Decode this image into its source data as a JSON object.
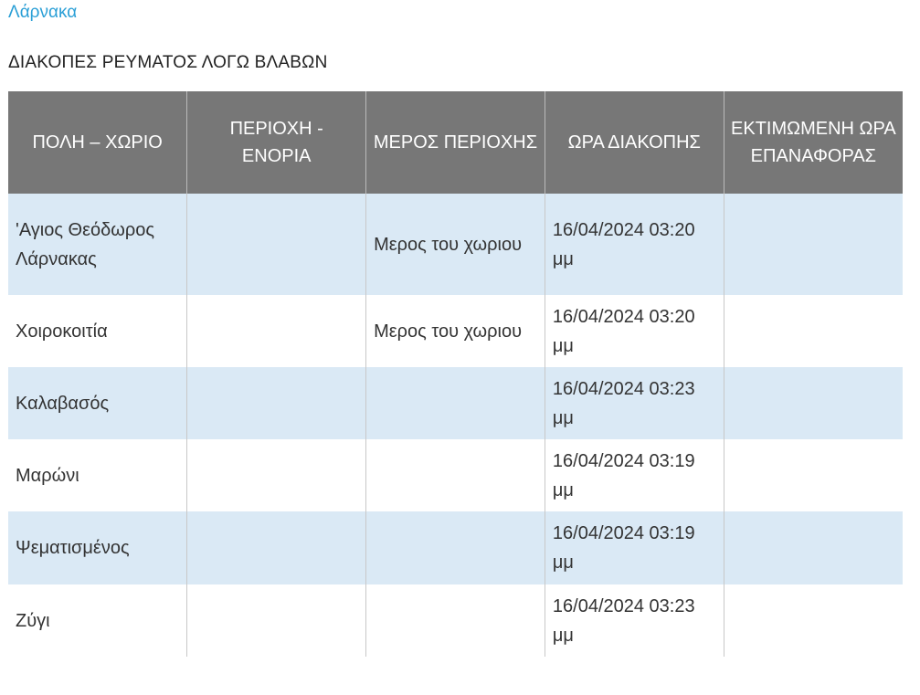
{
  "city": "Λάρνακα",
  "title": "ΔΙΑΚΟΠΕΣ ΡΕΥΜΑΤΟΣ ΛΟΓΩ ΒΛΑΒΩΝ",
  "headers": [
    "ΠΟΛΗ – ΧΩΡΙΟ",
    "ΠΕΡΙΟΧΗ - ΕΝΟΡΙΑ",
    "ΜΕΡΟΣ ΠΕΡΙΟΧΗΣ",
    "ΩΡΑ ΔΙΑΚΟΠΗΣ",
    "ΕΚΤΙΜΩΜΕΝΗ ΩΡΑ ΕΠΑΝΑΦΟΡΑΣ"
  ],
  "rows": [
    [
      "'Αγιος Θεόδωρος Λάρνακας",
      "",
      "Μερος του χωριου",
      "16/04/2024 03:20 μμ",
      ""
    ],
    [
      "Χοιροκοιτία",
      "",
      "Μερος του χωριου",
      "16/04/2024 03:20 μμ",
      ""
    ],
    [
      "Καλαβασός",
      "",
      "",
      "16/04/2024 03:23 μμ",
      ""
    ],
    [
      "Μαρώνι",
      "",
      "",
      "16/04/2024 03:19 μμ",
      ""
    ],
    [
      "Ψεματισμένος",
      "",
      "",
      "16/04/2024 03:19 μμ",
      ""
    ],
    [
      "Ζύγι",
      "",
      "",
      "16/04/2024 03:23 μμ",
      ""
    ]
  ]
}
